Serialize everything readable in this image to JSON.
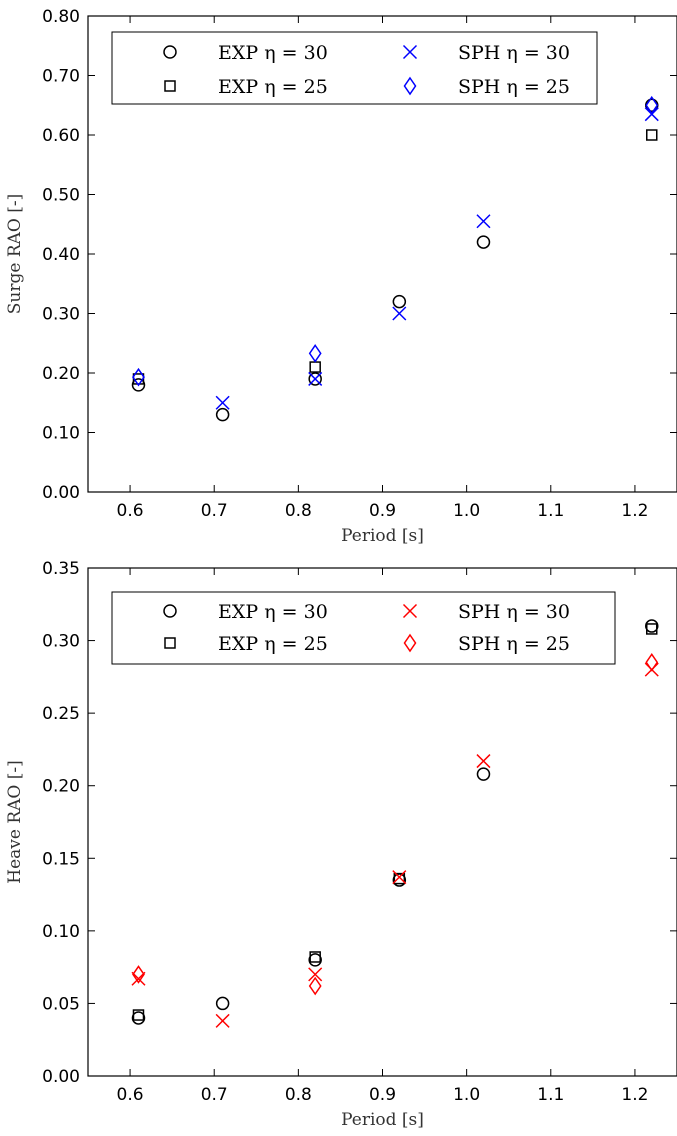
{
  "chart_data": [
    {
      "type": "scatter",
      "xlabel": "Period [s]",
      "ylabel": "Surge RAO [-]",
      "xlim": [
        0.55,
        1.25
      ],
      "ylim": [
        0,
        0.8
      ],
      "xticks": [
        0.6,
        0.7,
        0.8,
        0.9,
        1.0,
        1.1,
        1.2
      ],
      "xtick_labels": [
        "0.6",
        "0.7",
        "0.8",
        "0.9",
        "1.0",
        "1.1",
        "1.2"
      ],
      "yticks": [
        0,
        0.1,
        0.2,
        0.3,
        0.4,
        0.5,
        0.6,
        0.7,
        0.8
      ],
      "ytick_labels": [
        "0.00",
        "0.10",
        "0.20",
        "0.30",
        "0.40",
        "0.50",
        "0.60",
        "0.70",
        "0.80"
      ],
      "grid": false,
      "legend_placement": "top",
      "series": [
        {
          "name": "EXP η = 30",
          "marker": "circle",
          "color": "#000000",
          "x": [
            0.61,
            0.71,
            0.82,
            0.92,
            1.02,
            1.22
          ],
          "y": [
            0.18,
            0.13,
            0.19,
            0.32,
            0.42,
            0.65
          ]
        },
        {
          "name": "EXP η = 25",
          "marker": "square",
          "color": "#000000",
          "x": [
            0.61,
            0.82,
            1.22
          ],
          "y": [
            0.19,
            0.21,
            0.6
          ]
        },
        {
          "name": "SPH η = 30",
          "marker": "x",
          "color": "#0000ff",
          "x": [
            0.71,
            0.82,
            0.92,
            1.02,
            1.22
          ],
          "y": [
            0.15,
            0.19,
            0.3,
            0.455,
            0.635
          ]
        },
        {
          "name": "SPH η = 25",
          "marker": "diamond",
          "color": "#0000ff",
          "x": [
            0.61,
            0.82,
            1.22
          ],
          "y": [
            0.193,
            0.233,
            0.65
          ]
        }
      ]
    },
    {
      "type": "scatter",
      "xlabel": "Period [s]",
      "ylabel": "Heave RAO [-]",
      "xlim": [
        0.55,
        1.25
      ],
      "ylim": [
        0,
        0.35
      ],
      "xticks": [
        0.6,
        0.7,
        0.8,
        0.9,
        1.0,
        1.1,
        1.2
      ],
      "xtick_labels": [
        "0.6",
        "0.7",
        "0.8",
        "0.9",
        "1.0",
        "1.1",
        "1.2"
      ],
      "yticks": [
        0,
        0.05,
        0.1,
        0.15,
        0.2,
        0.25,
        0.3,
        0.35
      ],
      "ytick_labels": [
        "0.00",
        "0.05",
        "0.10",
        "0.15",
        "0.20",
        "0.25",
        "0.30",
        "0.35"
      ],
      "grid": false,
      "legend_placement": "top",
      "series": [
        {
          "name": "EXP η = 30",
          "marker": "circle",
          "color": "#000000",
          "x": [
            0.61,
            0.71,
            0.82,
            0.92,
            1.02,
            1.22
          ],
          "y": [
            0.04,
            0.05,
            0.08,
            0.135,
            0.208,
            0.31
          ]
        },
        {
          "name": "EXP η = 25",
          "marker": "square",
          "color": "#000000",
          "x": [
            0.61,
            0.82,
            0.92,
            1.22
          ],
          "y": [
            0.042,
            0.082,
            0.136,
            0.308
          ]
        },
        {
          "name": "SPH η = 30",
          "marker": "x",
          "color": "#ff0000",
          "x": [
            0.61,
            0.71,
            0.82,
            0.92,
            1.02,
            1.22
          ],
          "y": [
            0.067,
            0.038,
            0.07,
            0.137,
            0.217,
            0.28
          ]
        },
        {
          "name": "SPH η = 25",
          "marker": "diamond",
          "color": "#ff0000",
          "x": [
            0.61,
            0.82,
            1.22
          ],
          "y": [
            0.07,
            0.062,
            0.285
          ]
        }
      ]
    }
  ]
}
